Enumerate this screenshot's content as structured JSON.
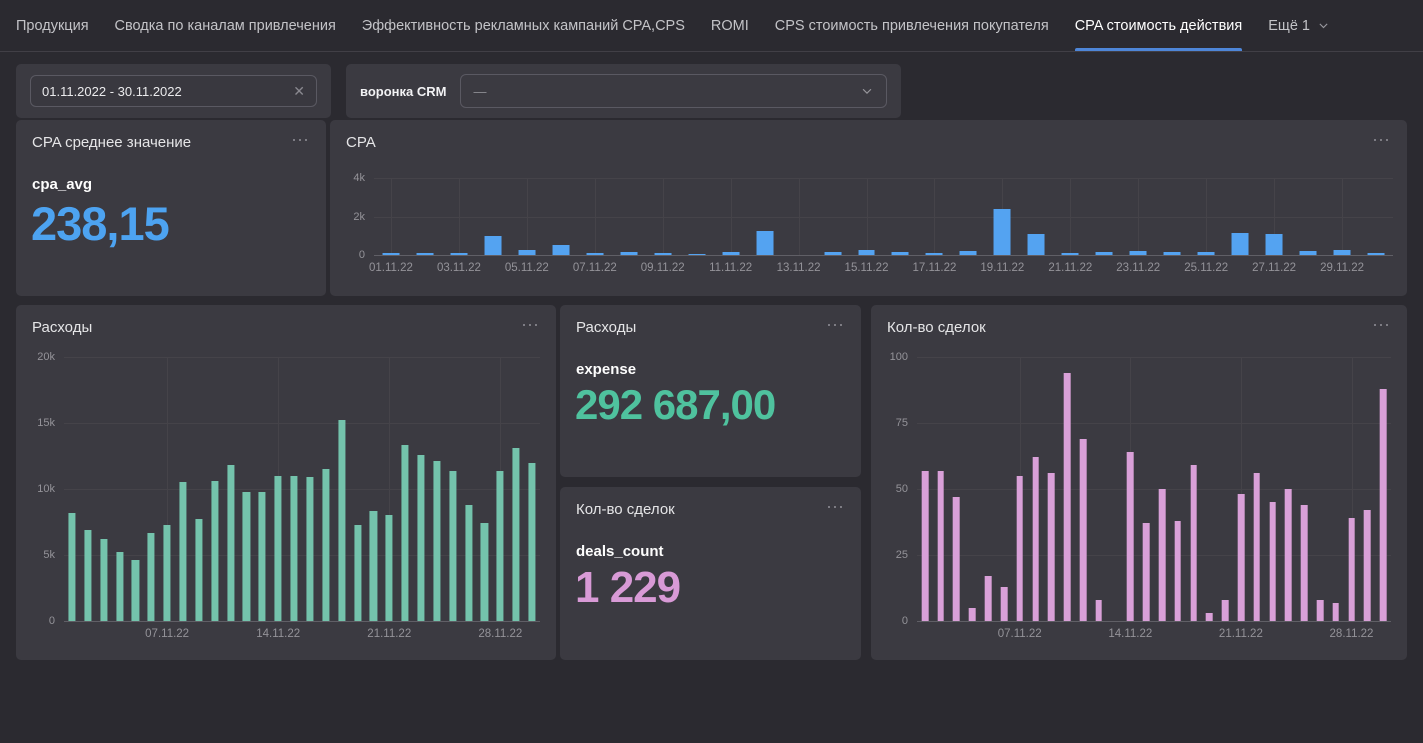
{
  "ui": {
    "menu_icon": "⋯"
  },
  "nav": {
    "tabs": [
      {
        "label": "Продукция",
        "active": false
      },
      {
        "label": "Сводка по каналам привлечения",
        "active": false
      },
      {
        "label": "Эффективность рекламных кампаний CPA,CPS",
        "active": false
      },
      {
        "label": "ROMI",
        "active": false
      },
      {
        "label": "CPS стоимость привлечения покупателя",
        "active": false
      },
      {
        "label": "CPA стоимость действия",
        "active": true
      },
      {
        "label": "Ещё 1",
        "active": false,
        "dropdown": true
      }
    ],
    "accent_color": "#4e86d8"
  },
  "filters": {
    "date_range": {
      "value": "01.11.2022 - 30.11.2022",
      "clear_icon": "✕"
    },
    "crm_funnel": {
      "label": "воронка CRM",
      "value": "—"
    }
  },
  "cards": {
    "cpa_avg": {
      "title": "CPA среднее значение",
      "metric_label": "cpa_avg",
      "value": "238,15",
      "value_color": "#4da3f1"
    },
    "expense": {
      "title": "Расходы",
      "metric_label": "expense",
      "value": "292 687,00",
      "value_color": "#4fc29e"
    },
    "deals": {
      "title": "Кол-во сделок",
      "metric_label": "deals_count",
      "value": "1 229",
      "value_color": "#d89ad6"
    }
  },
  "chart_data": [
    {
      "id": "cpa",
      "type": "bar",
      "title": "CPA",
      "bar_color": "#54a3f1",
      "ylim": [
        0,
        4000
      ],
      "grid": true,
      "legend": "none",
      "yticks": [
        {
          "value": 0,
          "label": "0"
        },
        {
          "value": 2000,
          "label": "2k"
        },
        {
          "value": 4000,
          "label": "4k"
        }
      ],
      "x": [
        "01.11.22",
        "02.11.22",
        "03.11.22",
        "04.11.22",
        "05.11.22",
        "06.11.22",
        "07.11.22",
        "08.11.22",
        "09.11.22",
        "10.11.22",
        "11.11.22",
        "12.11.22",
        "13.11.22",
        "14.11.22",
        "15.11.22",
        "16.11.22",
        "17.11.22",
        "18.11.22",
        "19.11.22",
        "20.11.22",
        "21.11.22",
        "22.11.22",
        "23.11.22",
        "24.11.22",
        "25.11.22",
        "26.11.22",
        "27.11.22",
        "28.11.22",
        "29.11.22",
        "30.11.22"
      ],
      "values": [
        110,
        120,
        110,
        1000,
        260,
        510,
        120,
        170,
        120,
        60,
        170,
        1230,
        0,
        150,
        250,
        150,
        130,
        200,
        2380,
        1100,
        90,
        150,
        200,
        150,
        160,
        1150,
        1100,
        200,
        250,
        90
      ],
      "xticks": [
        {
          "index": 0,
          "label": "01.11.22"
        },
        {
          "index": 2,
          "label": "03.11.22"
        },
        {
          "index": 4,
          "label": "05.11.22"
        },
        {
          "index": 6,
          "label": "07.11.22"
        },
        {
          "index": 8,
          "label": "09.11.22"
        },
        {
          "index": 10,
          "label": "11.11.22"
        },
        {
          "index": 12,
          "label": "13.11.22"
        },
        {
          "index": 14,
          "label": "15.11.22"
        },
        {
          "index": 16,
          "label": "17.11.22"
        },
        {
          "index": 18,
          "label": "19.11.22"
        },
        {
          "index": 20,
          "label": "21.11.22"
        },
        {
          "index": 22,
          "label": "23.11.22"
        },
        {
          "index": 24,
          "label": "25.11.22"
        },
        {
          "index": 26,
          "label": "27.11.22"
        },
        {
          "index": 28,
          "label": "29.11.22"
        }
      ]
    },
    {
      "id": "exp",
      "type": "bar",
      "title": "Расходы",
      "bar_color": "#74c3ac",
      "ylim": [
        0,
        20000
      ],
      "grid": true,
      "legend": "none",
      "yticks": [
        {
          "value": 0,
          "label": "0"
        },
        {
          "value": 5000,
          "label": "5k"
        },
        {
          "value": 10000,
          "label": "10k"
        },
        {
          "value": 15000,
          "label": "15k"
        },
        {
          "value": 20000,
          "label": "20k"
        }
      ],
      "x": [
        "01.11.22",
        "02.11.22",
        "03.11.22",
        "04.11.22",
        "05.11.22",
        "06.11.22",
        "07.11.22",
        "08.11.22",
        "09.11.22",
        "10.11.22",
        "11.11.22",
        "12.11.22",
        "13.11.22",
        "14.11.22",
        "15.11.22",
        "16.11.22",
        "17.11.22",
        "18.11.22",
        "19.11.22",
        "20.11.22",
        "21.11.22",
        "22.11.22",
        "23.11.22",
        "24.11.22",
        "25.11.22",
        "26.11.22",
        "27.11.22",
        "28.11.22",
        "29.11.22",
        "30.11.22"
      ],
      "values": [
        8200,
        6900,
        6200,
        5200,
        4600,
        6700,
        7300,
        10500,
        7700,
        10600,
        11800,
        9800,
        9800,
        11000,
        11000,
        10900,
        11500,
        15200,
        7300,
        8300,
        8000,
        13300,
        12600,
        12100,
        11400,
        8800,
        7400,
        11400,
        13100,
        12000
      ],
      "xticks": [
        {
          "index": 6,
          "label": "07.11.22"
        },
        {
          "index": 13,
          "label": "14.11.22"
        },
        {
          "index": 20,
          "label": "21.11.22"
        },
        {
          "index": 27,
          "label": "28.11.22"
        }
      ]
    },
    {
      "id": "deals",
      "type": "bar",
      "title": "Кол-во сделок",
      "bar_color": "#d9a0d8",
      "ylim": [
        0,
        100
      ],
      "grid": true,
      "legend": "none",
      "yticks": [
        {
          "value": 0,
          "label": "0"
        },
        {
          "value": 25,
          "label": "25"
        },
        {
          "value": 50,
          "label": "50"
        },
        {
          "value": 75,
          "label": "75"
        },
        {
          "value": 100,
          "label": "100"
        }
      ],
      "x": [
        "01.11.22",
        "02.11.22",
        "03.11.22",
        "04.11.22",
        "05.11.22",
        "06.11.22",
        "07.11.22",
        "08.11.22",
        "09.11.22",
        "10.11.22",
        "11.11.22",
        "12.11.22",
        "13.11.22",
        "14.11.22",
        "15.11.22",
        "16.11.22",
        "17.11.22",
        "18.11.22",
        "19.11.22",
        "20.11.22",
        "21.11.22",
        "22.11.22",
        "23.11.22",
        "24.11.22",
        "25.11.22",
        "26.11.22",
        "27.11.22",
        "28.11.22",
        "29.11.22",
        "30.11.22"
      ],
      "values": [
        57,
        57,
        47,
        5,
        17,
        13,
        55,
        62,
        56,
        94,
        69,
        8,
        0,
        64,
        37,
        50,
        38,
        59,
        3,
        8,
        48,
        56,
        45,
        50,
        44,
        8,
        7,
        39,
        42,
        88
      ],
      "xticks": [
        {
          "index": 6,
          "label": "07.11.22"
        },
        {
          "index": 13,
          "label": "14.11.22"
        },
        {
          "index": 20,
          "label": "21.11.22"
        },
        {
          "index": 27,
          "label": "28.11.22"
        }
      ]
    }
  ]
}
